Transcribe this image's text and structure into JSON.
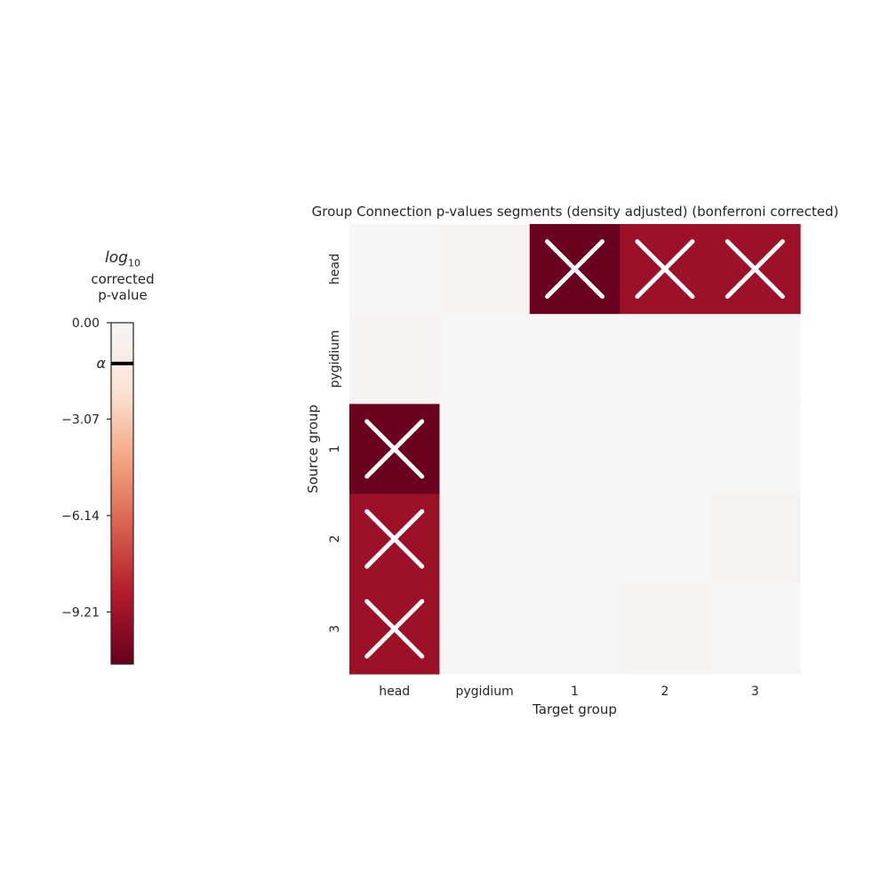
{
  "colorbar": {
    "title_log": "log",
    "title_log_sub": "10",
    "title_line2": "corrected",
    "title_line3": "p-value",
    "alpha_label": "α",
    "ticks": [
      {
        "value": 0.0,
        "label": "0.00"
      },
      {
        "value": -3.07,
        "label": "−3.07"
      },
      {
        "value": -6.14,
        "label": "−6.14"
      },
      {
        "value": -9.21,
        "label": "−9.21"
      }
    ],
    "alpha_value": -1.3,
    "vmin": -10.87,
    "vmax": 0.0,
    "colors": [
      "#f6f6f6",
      "#fbe3d6",
      "#f4a582",
      "#d6604d",
      "#b2182b",
      "#67001f"
    ]
  },
  "chart_data": {
    "type": "heatmap",
    "title": "Group Connection p-values segments (density adjusted) (bonferroni corrected)",
    "xlabel": "Target group",
    "ylabel": "Source group",
    "x_categories": [
      "head",
      "pygidium",
      "1",
      "2",
      "3"
    ],
    "y_categories": [
      "head",
      "pygidium",
      "1",
      "2",
      "3"
    ],
    "log10_corrected_pvalues": [
      [
        0.0,
        -0.3,
        -10.8,
        -9.3,
        -9.3
      ],
      [
        -0.3,
        0.0,
        0.0,
        0.0,
        0.0
      ],
      [
        -10.8,
        0.0,
        0.0,
        0.0,
        0.0
      ],
      [
        -9.3,
        0.0,
        0.0,
        0.0,
        -0.4
      ],
      [
        -9.3,
        0.0,
        0.0,
        -0.4,
        0.0
      ]
    ],
    "significant_marker": "X",
    "significant": [
      [
        false,
        false,
        true,
        true,
        true
      ],
      [
        false,
        false,
        false,
        false,
        false
      ],
      [
        true,
        false,
        false,
        false,
        false
      ],
      [
        true,
        false,
        false,
        false,
        false
      ],
      [
        true,
        false,
        false,
        false,
        false
      ]
    ],
    "colormap": "RdBu_r (lower half)",
    "vmin": -10.87,
    "vmax": 0.0
  }
}
